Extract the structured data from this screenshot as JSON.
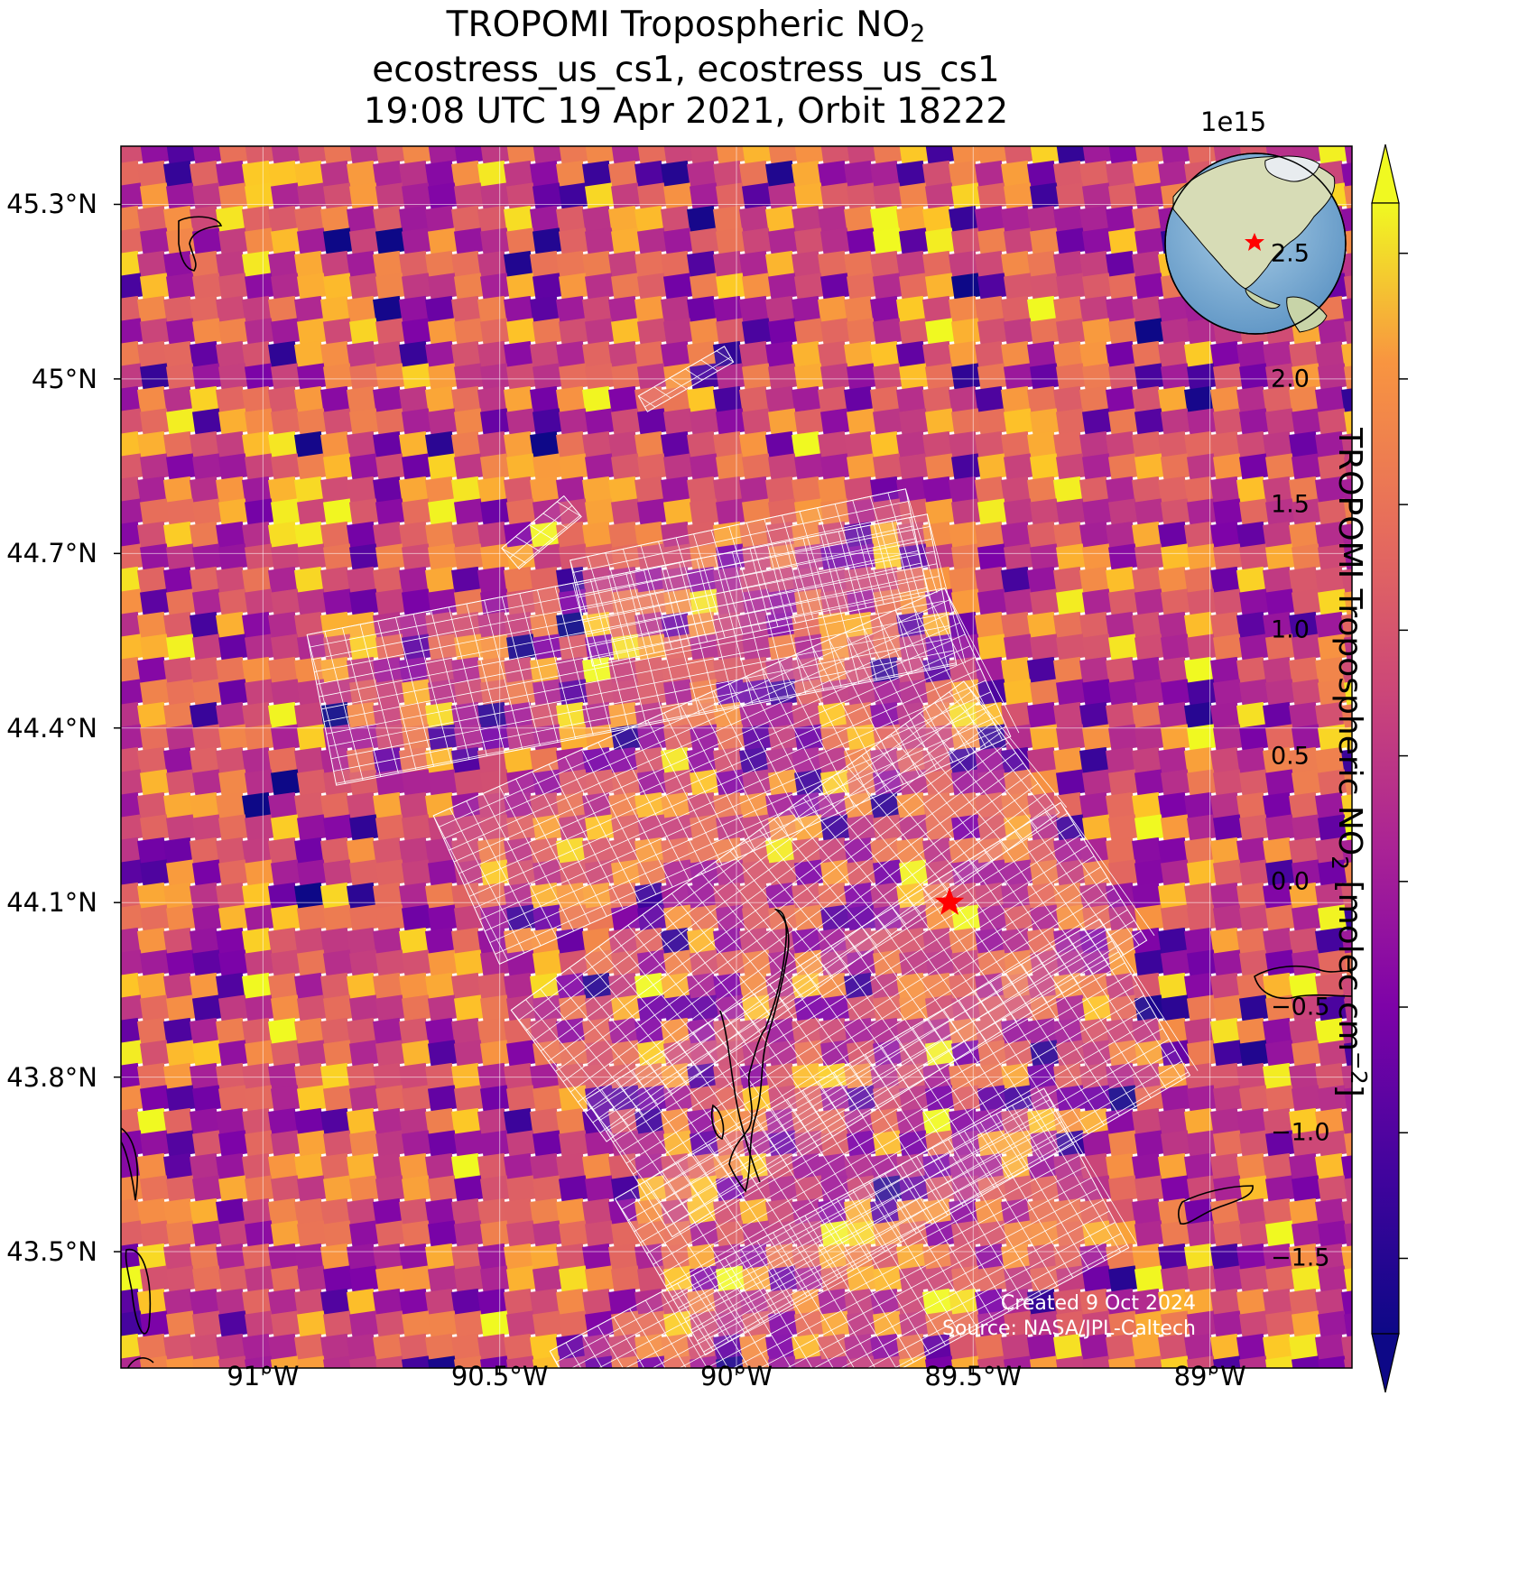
{
  "title": {
    "line1_prefix": "TROPOMI Tropospheric NO",
    "line1_sub": "2",
    "line2": "ecostress_us_cs1, ecostress_us_cs1",
    "line3": "19:08 UTC 19 Apr 2021, Orbit 18222"
  },
  "map": {
    "projection_extent": {
      "lon_min": -91.3,
      "lon_max": -88.7,
      "lat_min": 43.3,
      "lat_max": 45.4
    },
    "lat_ticks": [
      {
        "value": 45.3,
        "label": "45.3°N"
      },
      {
        "value": 45.0,
        "label": "45°N"
      },
      {
        "value": 44.7,
        "label": "44.7°N"
      },
      {
        "value": 44.4,
        "label": "44.4°N"
      },
      {
        "value": 44.1,
        "label": "44.1°N"
      },
      {
        "value": 43.8,
        "label": "43.8°N"
      },
      {
        "value": 43.5,
        "label": "43.5°N"
      }
    ],
    "lon_ticks": [
      {
        "value": -91.0,
        "label": "91°W"
      },
      {
        "value": -90.5,
        "label": "90.5°W"
      },
      {
        "value": -90.0,
        "label": "90°W"
      },
      {
        "value": -89.5,
        "label": "89.5°W"
      },
      {
        "value": -89.0,
        "label": "89°W"
      }
    ],
    "target_site": {
      "lon": -89.55,
      "lat": 44.1,
      "marker": "red-star"
    },
    "gridlines": true,
    "colormap": "plasma"
  },
  "colorbar": {
    "exponent_label": "1e15",
    "label_prefix": "TROPOMI Tropospheric NO",
    "label_sub": "2",
    "label_units": " [molec cm",
    "label_sup": "−2",
    "label_close": "]",
    "vmin": -1.8,
    "vmax": 2.7,
    "extend": "both",
    "ticks": [
      {
        "value": 2.5,
        "label": "2.5"
      },
      {
        "value": 2.0,
        "label": "2.0"
      },
      {
        "value": 1.5,
        "label": "1.5"
      },
      {
        "value": 1.0,
        "label": "1.0"
      },
      {
        "value": 0.5,
        "label": "0.5"
      },
      {
        "value": 0.0,
        "label": "0.0"
      },
      {
        "value": -0.5,
        "label": "−0.5"
      },
      {
        "value": -1.0,
        "label": "−1.0"
      },
      {
        "value": -1.5,
        "label": "−1.5"
      }
    ]
  },
  "inset_globe": {
    "marker": "red-star",
    "region": "North America"
  },
  "credits": {
    "created": "Created 9 Oct 2024",
    "source": "Source: NASA/JPL-Caltech"
  }
}
